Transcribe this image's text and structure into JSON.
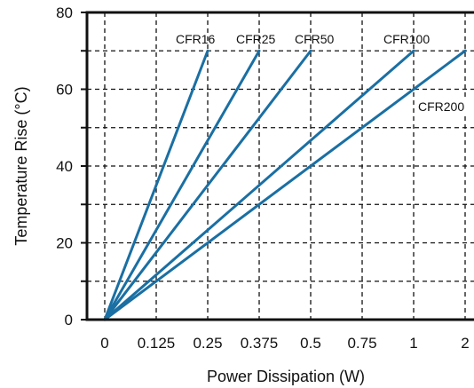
{
  "chart_data": {
    "type": "line",
    "xlabel": "Power Dissipation (W)",
    "ylabel": "Temperature Rise (°C)",
    "x_tick_labels": [
      "0",
      "0.125",
      "0.25",
      "0.375",
      "0.5",
      "0.75",
      "1",
      "2"
    ],
    "y_tick_labels": [
      "0",
      "20",
      "40",
      "60",
      "80"
    ],
    "ylim": [
      0,
      80
    ],
    "grid": true,
    "series": [
      {
        "name": "CFR16",
        "x": [
          "0",
          "0.25"
        ],
        "y": [
          0,
          70
        ]
      },
      {
        "name": "CFR25",
        "x": [
          "0",
          "0.375"
        ],
        "y": [
          0,
          70
        ]
      },
      {
        "name": "CFR50",
        "x": [
          "0",
          "0.5"
        ],
        "y": [
          0,
          70
        ]
      },
      {
        "name": "CFR100",
        "x": [
          "0",
          "1"
        ],
        "y": [
          0,
          70
        ]
      },
      {
        "name": "CFR200",
        "x": [
          "0",
          "2"
        ],
        "y": [
          0,
          70
        ]
      }
    ],
    "colors": {
      "line": "#1a6fa3",
      "axis": "#111111",
      "grid": "#111111"
    }
  }
}
